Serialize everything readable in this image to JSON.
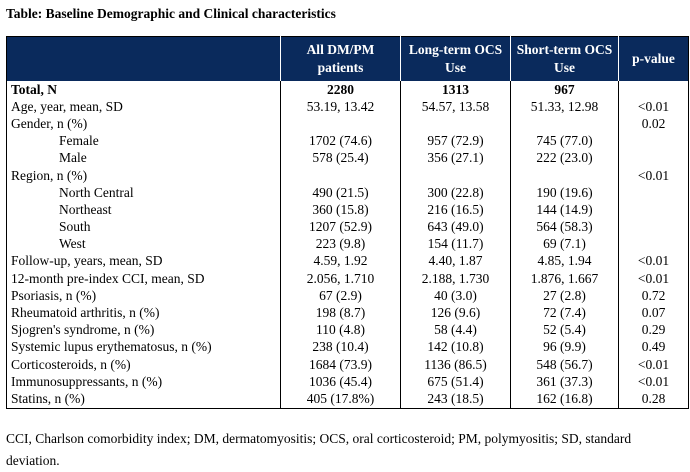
{
  "title": "Table: Baseline Demographic and Clinical characteristics",
  "table": {
    "header": [
      null,
      "All DM/PM patients",
      "Long-term OCS Use",
      "Short-term OCS Use",
      "p-value"
    ],
    "rows": [
      {
        "label": "Total, N",
        "cells": [
          2280,
          1313,
          967,
          null
        ]
      },
      {
        "label": "Age, year, mean, SD",
        "cells": [
          "53.19, 13.42",
          "54.57, 13.58",
          "51.33, 12.98",
          "<0.01"
        ]
      },
      {
        "label": "Gender, n (%)",
        "cells": [
          null,
          null,
          null,
          0.02
        ],
        "children": [
          {
            "label": "Female",
            "cells": [
              "1702 (74.6)",
              "957 (72.9)",
              "745 (77.0)",
              null
            ]
          },
          {
            "label": "Male",
            "cells": [
              "578 (25.4)",
              "356 (27.1)",
              "222 (23.0)",
              null
            ]
          }
        ]
      },
      {
        "label": "Region, n (%)",
        "cells": [
          null,
          null,
          null,
          "<0.01"
        ],
        "children": [
          {
            "label": "North Central",
            "cells": [
              "490 (21.5)",
              "300 (22.8)",
              "190 (19.6)",
              null
            ]
          },
          {
            "label": "Northeast",
            "cells": [
              "360 (15.8)",
              "216 (16.5)",
              "144 (14.9)",
              null
            ]
          },
          {
            "label": "South",
            "cells": [
              "1207 (52.9)",
              "643 (49.0)",
              "564 (58.3)",
              null
            ]
          },
          {
            "label": "West",
            "cells": [
              "223 (9.8)",
              "154 (11.7)",
              "69 (7.1)",
              null
            ]
          }
        ]
      },
      {
        "label": "Follow-up, years, mean, SD",
        "cells": [
          "4.59, 1.92",
          "4.40, 1.87",
          "4.85, 1.94",
          "<0.01"
        ]
      },
      {
        "label": "12-month pre-index CCI, mean, SD",
        "cells": [
          "2.056, 1.710",
          "2.188, 1.730",
          "1.876, 1.667",
          "<0.01"
        ]
      },
      {
        "label": "Psoriasis, n (%)",
        "cells": [
          "67 (2.9)",
          "40 (3.0)",
          "27 (2.8)",
          0.72
        ]
      },
      {
        "label": "Rheumatoid arthritis, n (%)",
        "cells": [
          "198 (8.7)",
          "126 (9.6)",
          "72 (7.4)",
          0.07
        ]
      },
      {
        "label": "Sjogren's syndrome, n (%)",
        "cells": [
          "110 (4.8)",
          "58 (4.4)",
          "52 (5.4)",
          0.29
        ]
      },
      {
        "label": "Systemic lupus erythematosus, n (%)",
        "cells": [
          "238 (10.4)",
          "142 (10.8)",
          "96 (9.9)",
          0.49
        ]
      },
      {
        "label": "Corticosteroids, n (%)",
        "cells": [
          "1684 (73.9)",
          "1136 (86.5)",
          "548 (56.7)",
          "<0.01"
        ]
      },
      {
        "label": "Immunosuppressants, n (%)",
        "cells": [
          "1036 (45.4)",
          "675 (51.4)",
          "361 (37.3)",
          "<0.01"
        ]
      },
      {
        "label": "Statins, n (%)",
        "cells": [
          "405 (17.8%)",
          "243 (18.5)",
          "162 (16.8)",
          0.28
        ]
      }
    ]
  },
  "footnote": "CCI, Charlson comorbidity index; DM, dermatomyositis; OCS, oral corticosteroid; PM, polymyositis; SD, standard deviation."
}
